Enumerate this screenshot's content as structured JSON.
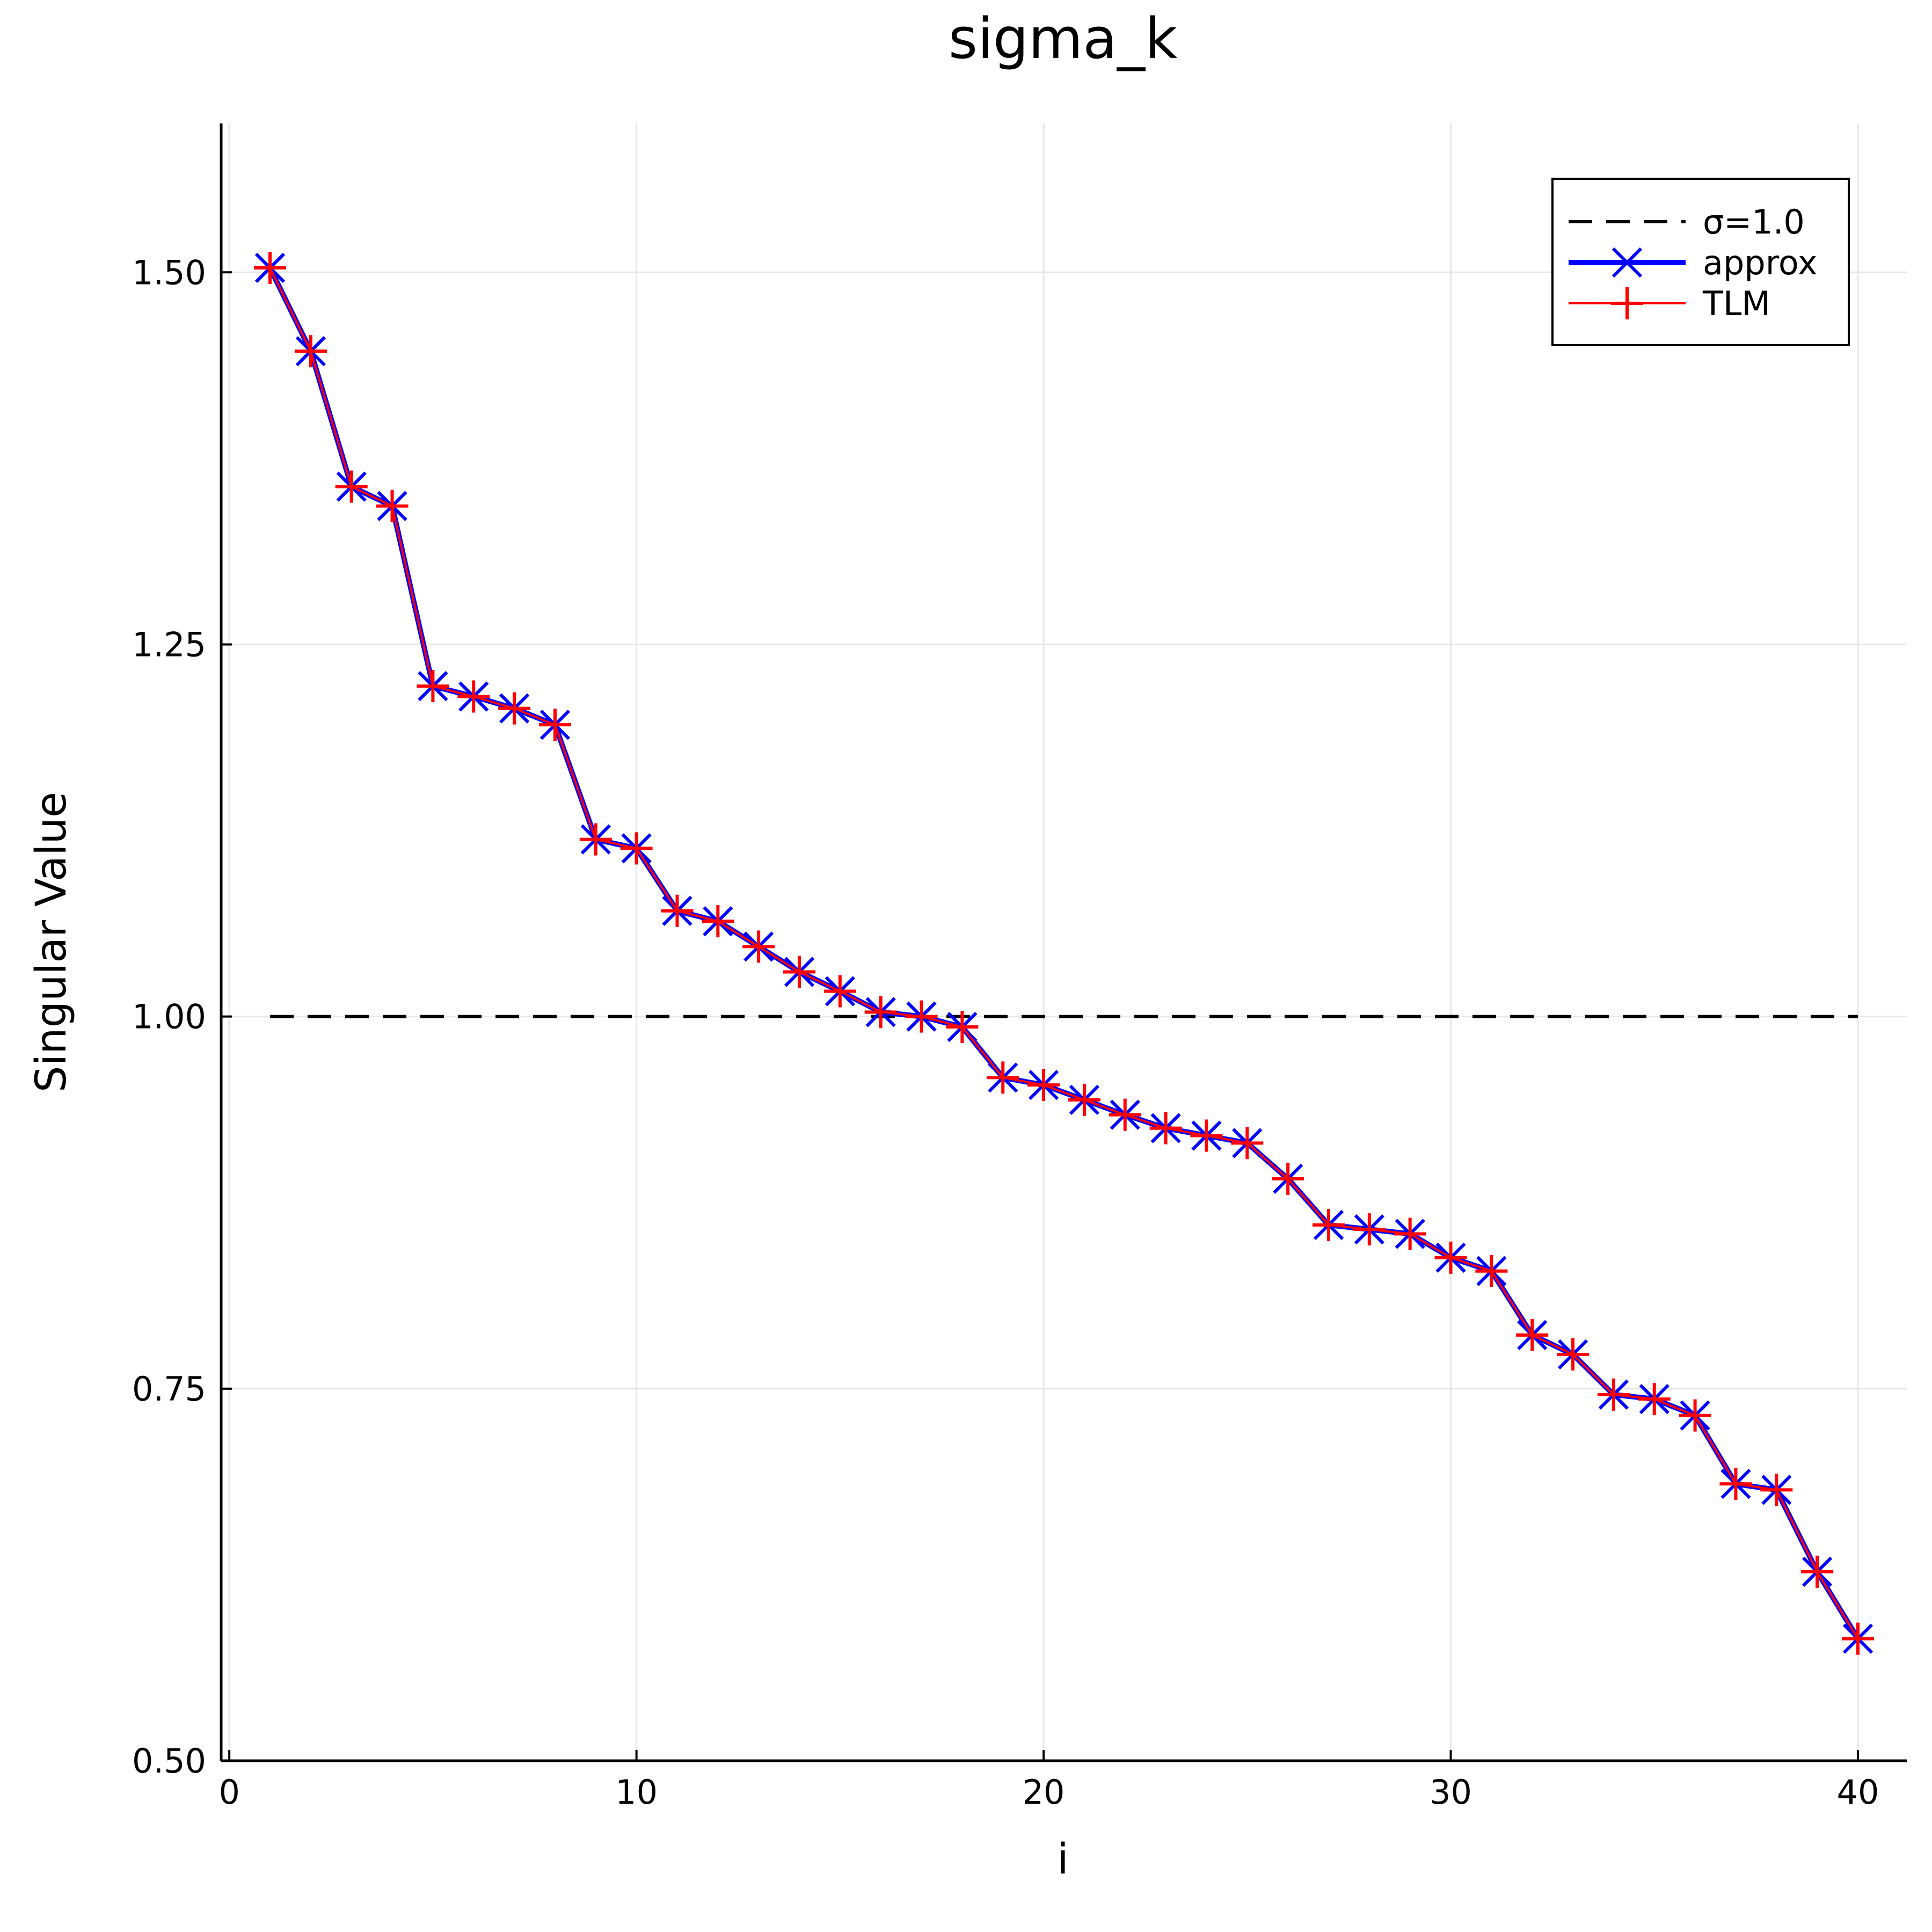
{
  "chart_data": {
    "type": "line",
    "title": "sigma_k",
    "xlabel": "i",
    "ylabel": "Singular Value",
    "xlim": [
      -0.2,
      41.2
    ],
    "ylim": [
      0.5,
      1.6
    ],
    "xticks": [
      0,
      10,
      20,
      30,
      40
    ],
    "xtick_labels": [
      "0",
      "10",
      "20",
      "30",
      "40"
    ],
    "yticks": [
      0.5,
      0.75,
      1.0,
      1.25,
      1.5
    ],
    "ytick_labels": [
      "0.50",
      "0.75",
      "1.00",
      "1.25",
      "1.50"
    ],
    "grid": true,
    "legend_position": "top-right",
    "x": [
      1,
      2,
      3,
      4,
      5,
      6,
      7,
      8,
      9,
      10,
      11,
      12,
      13,
      14,
      15,
      16,
      17,
      18,
      19,
      20,
      21,
      22,
      23,
      24,
      25,
      26,
      27,
      28,
      29,
      30,
      31,
      32,
      33,
      34,
      35,
      36,
      37,
      38,
      39,
      40
    ],
    "series": [
      {
        "name": "σ=1.0",
        "kind": "hline",
        "y": 1.0,
        "color": "#000000",
        "style": "dashed"
      },
      {
        "name": "approx",
        "color": "#0000ff",
        "marker": "x",
        "values": [
          1.503,
          1.447,
          1.356,
          1.343,
          1.222,
          1.215,
          1.207,
          1.196,
          1.119,
          1.113,
          1.071,
          1.064,
          1.047,
          1.03,
          1.017,
          1.003,
          1.0,
          0.993,
          0.959,
          0.954,
          0.944,
          0.934,
          0.925,
          0.92,
          0.915,
          0.891,
          0.86,
          0.857,
          0.854,
          0.838,
          0.829,
          0.786,
          0.773,
          0.746,
          0.743,
          0.732,
          0.686,
          0.682,
          0.627,
          0.582
        ]
      },
      {
        "name": "TLM",
        "color": "#ff0000",
        "marker": "+",
        "values": [
          1.503,
          1.447,
          1.356,
          1.343,
          1.222,
          1.215,
          1.207,
          1.196,
          1.119,
          1.113,
          1.071,
          1.064,
          1.047,
          1.03,
          1.017,
          1.003,
          1.0,
          0.993,
          0.959,
          0.954,
          0.944,
          0.934,
          0.925,
          0.92,
          0.915,
          0.891,
          0.86,
          0.857,
          0.854,
          0.838,
          0.829,
          0.786,
          0.773,
          0.746,
          0.743,
          0.732,
          0.686,
          0.682,
          0.627,
          0.582
        ]
      }
    ]
  }
}
